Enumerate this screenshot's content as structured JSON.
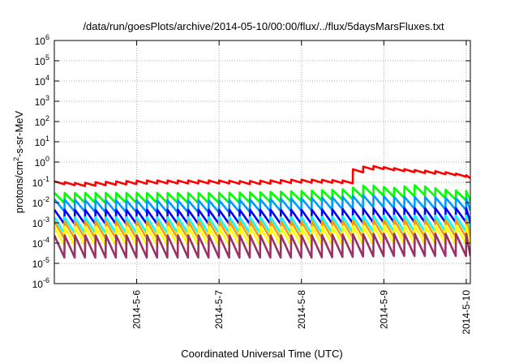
{
  "chart_data": {
    "type": "line",
    "title": "/data/run/goesPlots/archive/2014-05-10/00:00/flux/../flux/5daysMarsFluxes.txt",
    "xlabel": "Coordinated Universal Time (UTC)",
    "ylabel": {
      "base": "protons/cm",
      "sup": "2",
      "rest": "-s-sr-MeV"
    },
    "y_scale": "log",
    "ylim": [
      1e-06,
      1000000.0
    ],
    "xlim": [
      0.0,
      5.05
    ],
    "grid": true,
    "y_ticks": [
      {
        "value": 1e-06,
        "base": "10",
        "exp": "-6"
      },
      {
        "value": 1e-05,
        "base": "10",
        "exp": "-5"
      },
      {
        "value": 0.0001,
        "base": "10",
        "exp": "-4"
      },
      {
        "value": 0.001,
        "base": "10",
        "exp": "-3"
      },
      {
        "value": 0.01,
        "base": "10",
        "exp": "-2"
      },
      {
        "value": 0.1,
        "base": "10",
        "exp": "-1"
      },
      {
        "value": 1,
        "base": "10",
        "exp": "0"
      },
      {
        "value": 10,
        "base": "10",
        "exp": "1"
      },
      {
        "value": 100,
        "base": "10",
        "exp": "2"
      },
      {
        "value": 1000,
        "base": "10",
        "exp": "3"
      },
      {
        "value": 10000,
        "base": "10",
        "exp": "4"
      },
      {
        "value": 100000,
        "base": "10",
        "exp": "5"
      },
      {
        "value": 1000000,
        "base": "10",
        "exp": "6"
      }
    ],
    "x_ticks": [
      {
        "value": 1,
        "label": "2014-5-6"
      },
      {
        "value": 2,
        "label": "2014-5-7"
      },
      {
        "value": 3,
        "label": "2014-5-8"
      },
      {
        "value": 4,
        "label": "2014-5-9"
      },
      {
        "value": 5,
        "label": "2014-5-10"
      }
    ],
    "x_units": "days after 2014-05-05 00:00 UTC",
    "series": [
      {
        "color": "#ff0000",
        "x": [
          0.0,
          0.28,
          0.5,
          0.8,
          1.1,
          1.4,
          1.7,
          2.0,
          2.3,
          2.6,
          2.9,
          3.2,
          3.5,
          3.52,
          3.8,
          4.1,
          4.4,
          4.7,
          5.0
        ],
        "y": [
          0.1,
          0.08,
          0.09,
          0.1,
          0.11,
          0.11,
          0.11,
          0.11,
          0.1,
          0.11,
          0.12,
          0.12,
          0.11,
          0.3,
          0.6,
          0.45,
          0.35,
          0.3,
          0.2
        ]
      },
      {
        "color": "#00ff00",
        "x": [
          0.0,
          0.5,
          1.0,
          1.5,
          2.0,
          2.5,
          3.0,
          3.5,
          3.8,
          4.1,
          4.4,
          4.7,
          5.0
        ],
        "y": [
          0.02,
          0.02,
          0.02,
          0.02,
          0.02,
          0.022,
          0.025,
          0.03,
          0.05,
          0.035,
          0.05,
          0.03,
          0.025
        ]
      },
      {
        "color": "#0099ff",
        "x": [
          0.0,
          0.5,
          1.0,
          1.5,
          2.0,
          2.5,
          3.0,
          3.5,
          3.8,
          4.1,
          4.4,
          4.7,
          5.0
        ],
        "y": [
          0.009,
          0.008,
          0.008,
          0.008,
          0.008,
          0.009,
          0.01,
          0.012,
          0.015,
          0.012,
          0.012,
          0.011,
          0.01
        ]
      },
      {
        "color": "#0000ff",
        "x": [
          0.0,
          1.0,
          2.0,
          3.0,
          4.0,
          5.0
        ],
        "y": [
          0.0025,
          0.0025,
          0.0025,
          0.0025,
          0.003,
          0.003
        ]
      },
      {
        "color": "#00ffff",
        "x": [
          0.0,
          1.0,
          2.0,
          3.0,
          4.0,
          5.0
        ],
        "y": [
          0.001,
          0.001,
          0.001,
          0.001,
          0.0012,
          0.0012
        ]
      },
      {
        "color": "#ff9900",
        "x": [
          0.0,
          1.0,
          2.0,
          3.0,
          4.0,
          5.0
        ],
        "y": [
          0.0006,
          0.0006,
          0.0006,
          0.0006,
          0.0007,
          0.0007
        ]
      },
      {
        "color": "#ffff00",
        "x": [
          0.0,
          1.0,
          2.0,
          3.0,
          4.0,
          5.0
        ],
        "y": [
          0.0003,
          0.0003,
          0.0003,
          0.0003,
          0.00035,
          0.00035
        ]
      },
      {
        "color": "#993366",
        "x": [
          0.0,
          1.0,
          2.0,
          3.0,
          4.0,
          5.0
        ],
        "y": [
          0.0001,
          0.0001,
          0.0001,
          0.0001,
          0.00012,
          0.00012
        ]
      }
    ]
  }
}
